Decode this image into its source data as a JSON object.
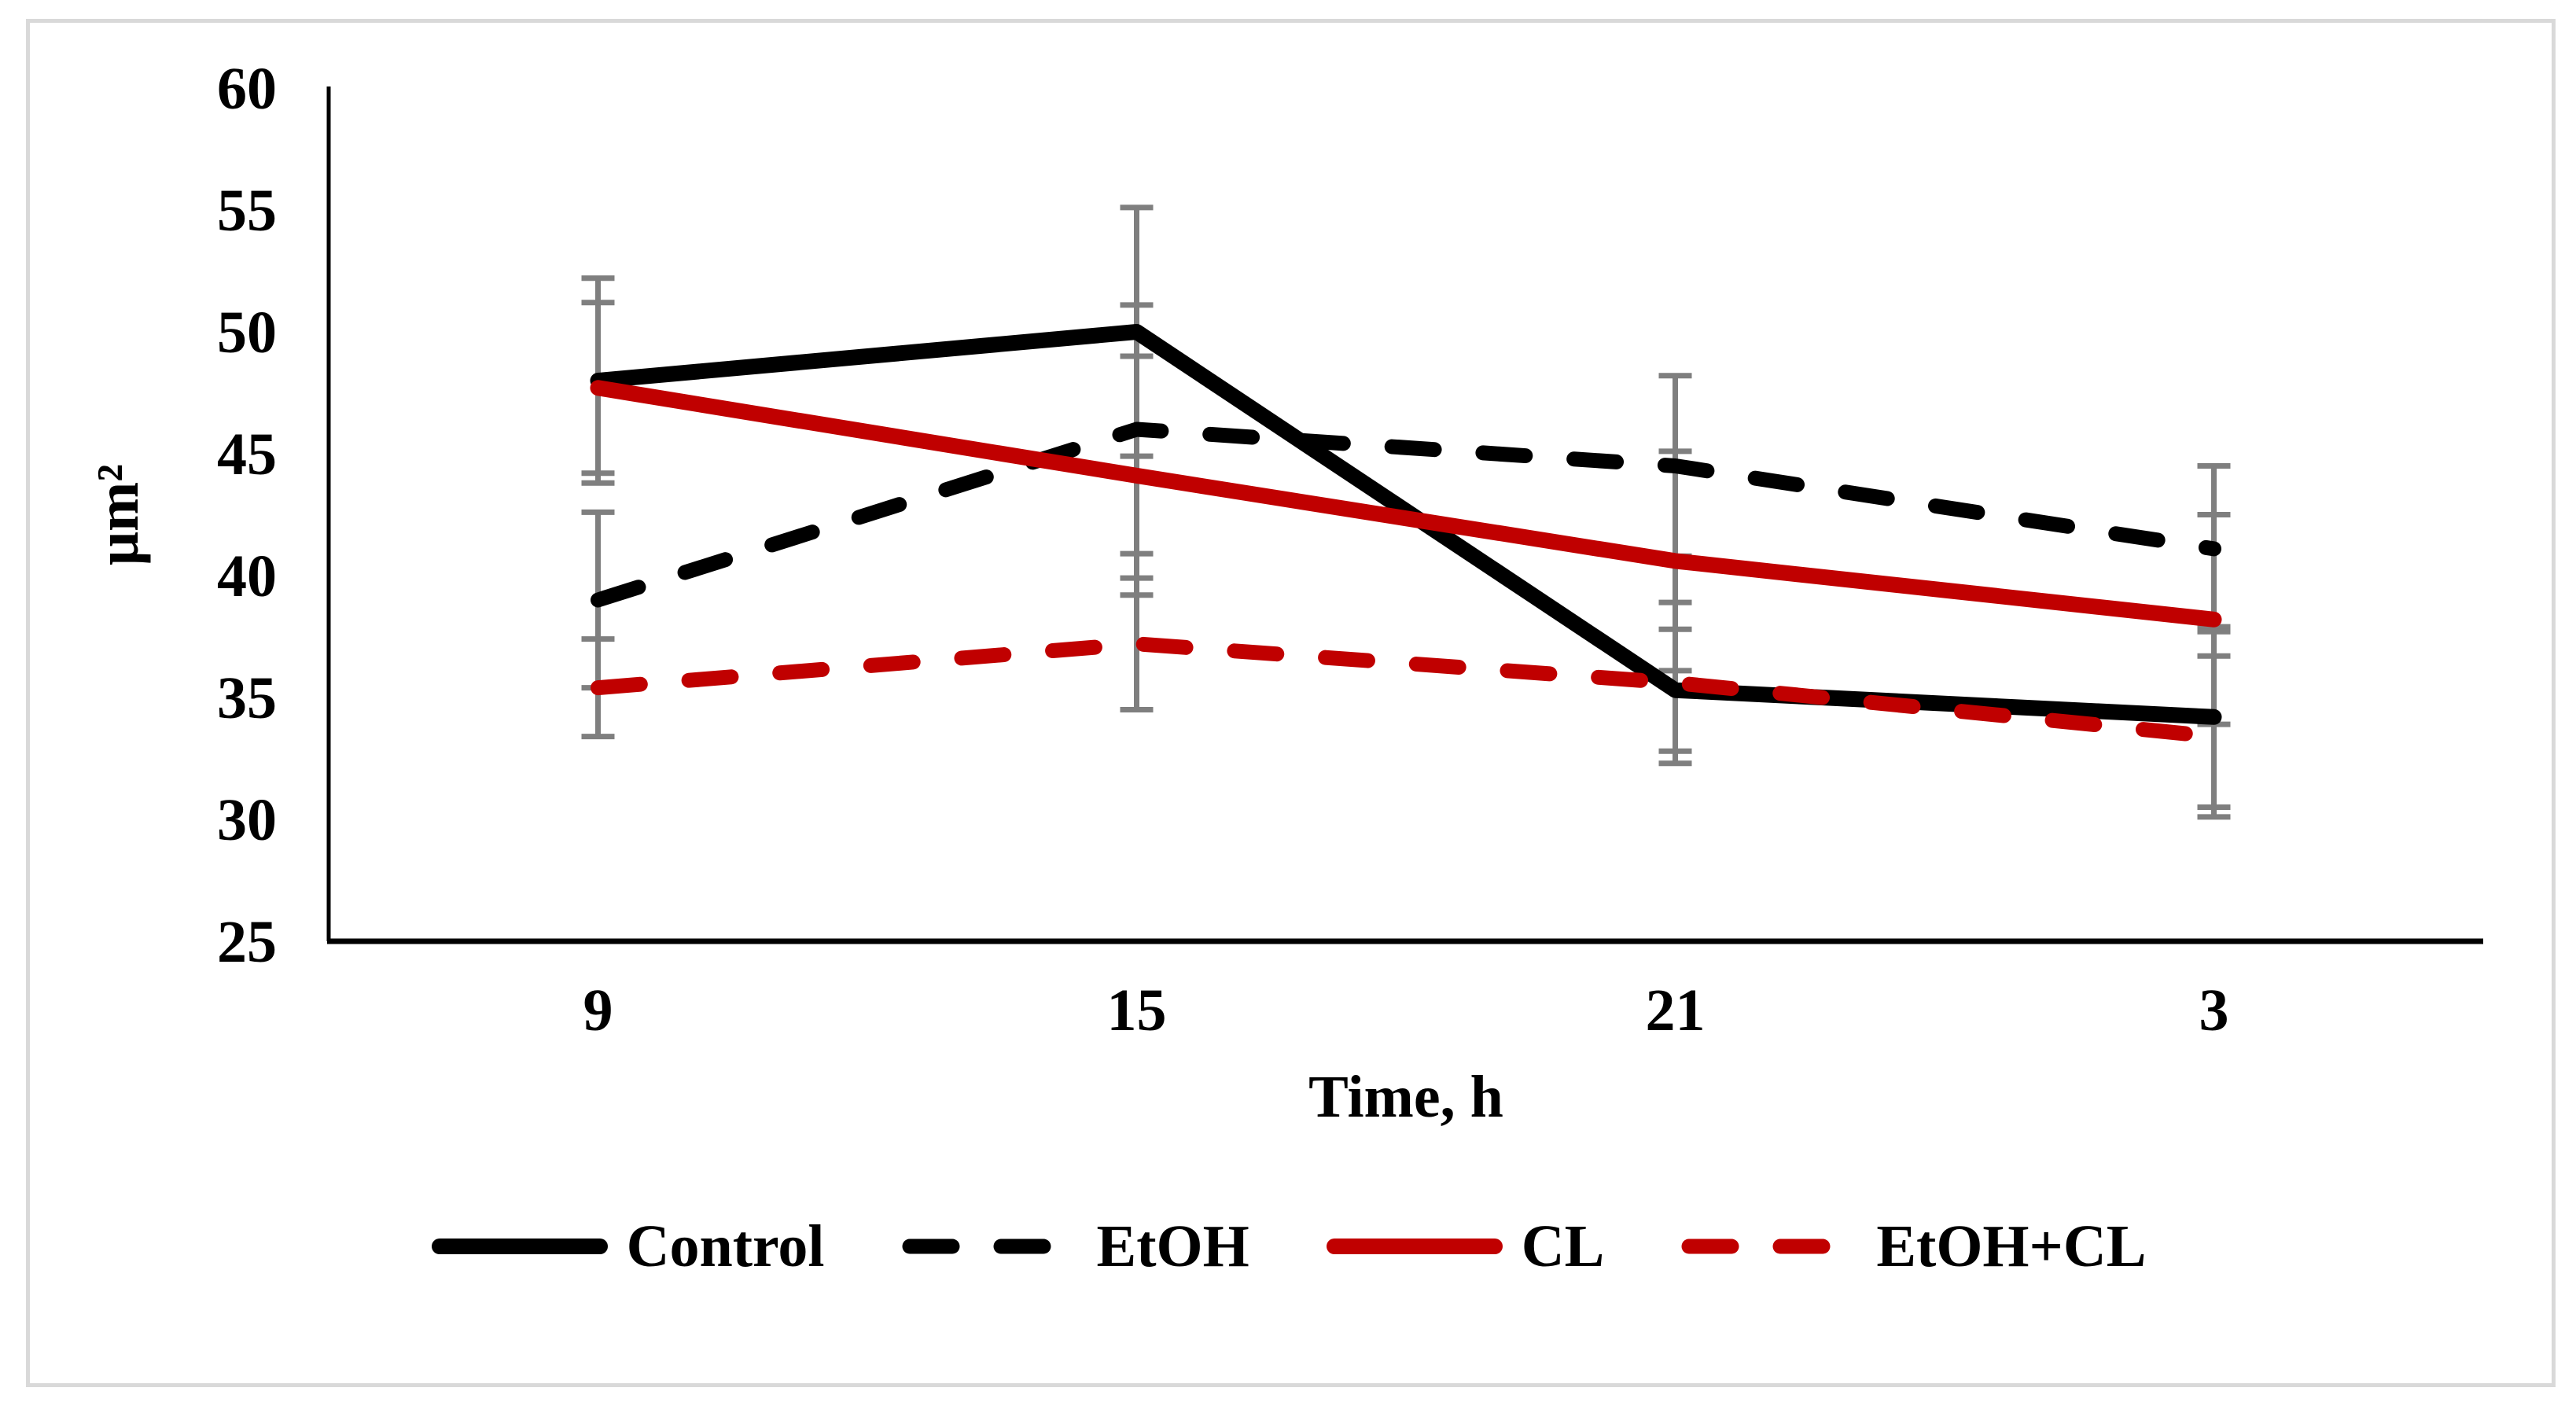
{
  "figure": {
    "background_color": "#FFFFFF",
    "border_color": "#D9D9D9"
  },
  "chart_data": {
    "type": "line",
    "title": "",
    "xlabel": "Time, h",
    "ylabel": "μm²",
    "categories": [
      "9",
      "15",
      "21",
      "3"
    ],
    "ylim": [
      25,
      60
    ],
    "ytick_step": 5,
    "ytick_labels": [
      "25",
      "30",
      "35",
      "40",
      "45",
      "50",
      "55",
      "60"
    ],
    "grid": false,
    "legend_position": "bottom",
    "error_bar_color": "#7F7F7F",
    "series": [
      {
        "name": "Control",
        "color": "#000000",
        "dash": false,
        "values": [
          48.0,
          50.0,
          35.3,
          34.2
        ],
        "error": [
          4.2,
          5.1,
          2.5,
          3.7
        ]
      },
      {
        "name": "EtOH",
        "color": "#000000",
        "dash": true,
        "values": [
          39.0,
          46.0,
          44.5,
          41.1
        ],
        "error": [
          3.6,
          5.1,
          3.7,
          3.4
        ]
      },
      {
        "name": "CL",
        "color": "#C00000",
        "dash": false,
        "values": [
          47.7,
          44.1,
          40.6,
          38.2
        ],
        "error": [
          3.5,
          4.9,
          4.5,
          4.3
        ]
      },
      {
        "name": "EtOH+CL",
        "color": "#C00000",
        "dash": true,
        "values": [
          35.4,
          37.2,
          35.6,
          33.4
        ],
        "error": [
          2.0,
          2.7,
          3.3,
          3.3
        ]
      }
    ]
  }
}
